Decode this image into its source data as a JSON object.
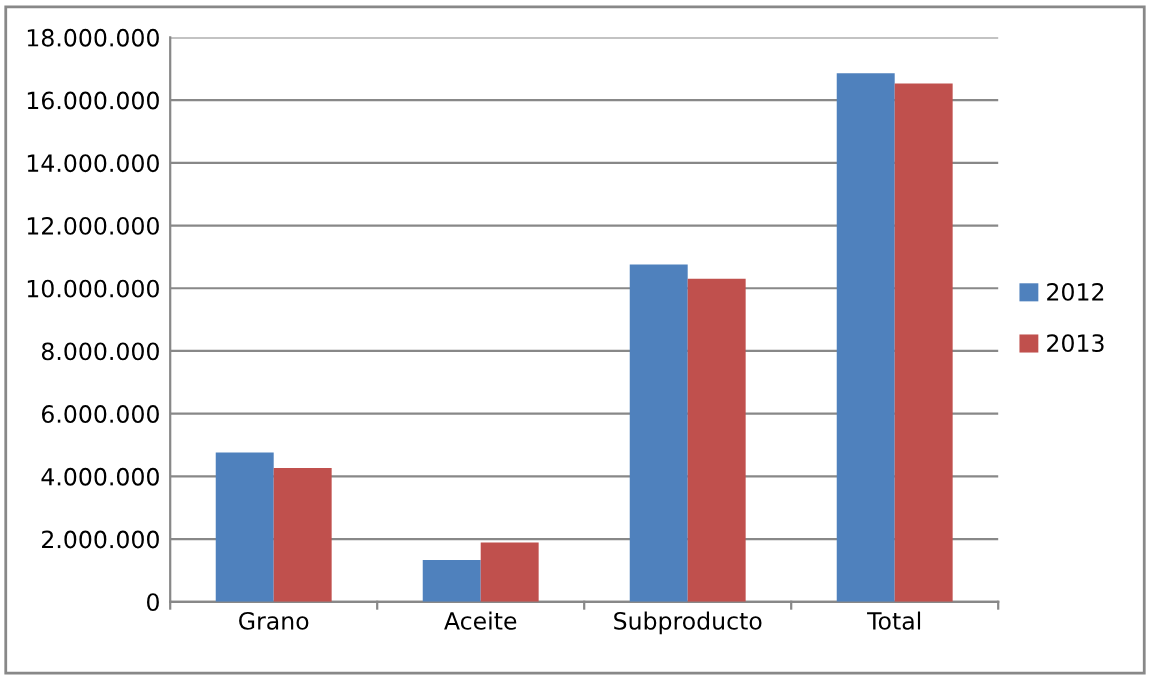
{
  "chart_data": {
    "type": "bar",
    "categories": [
      "Grano",
      "Aceite",
      "Subproducto",
      "Total"
    ],
    "series": [
      {
        "name": "2012",
        "color": "#4f81bd",
        "values": [
          4760000,
          1330000,
          10760000,
          16860000
        ]
      },
      {
        "name": "2013",
        "color": "#c0504d",
        "values": [
          4270000,
          1890000,
          10300000,
          16530000
        ]
      }
    ],
    "ylim": [
      0,
      18000000
    ],
    "yticks": [
      0,
      {
        "value": 2000000,
        "label": "2.000.000"
      },
      {
        "value": 4000000,
        "label": "4.000.000"
      },
      {
        "value": 6000000,
        "label": "6.000.000"
      },
      {
        "value": 8000000,
        "label": "8.000.000"
      },
      {
        "value": 10000000,
        "label": "10.000.000"
      },
      {
        "value": 12000000,
        "label": "12.000.000"
      },
      {
        "value": 14000000,
        "label": "14.000.000"
      },
      {
        "value": 16000000,
        "label": "16.000.000"
      },
      {
        "value": 18000000,
        "label": "18.000.000"
      }
    ],
    "grid": "y",
    "legend": "right"
  }
}
